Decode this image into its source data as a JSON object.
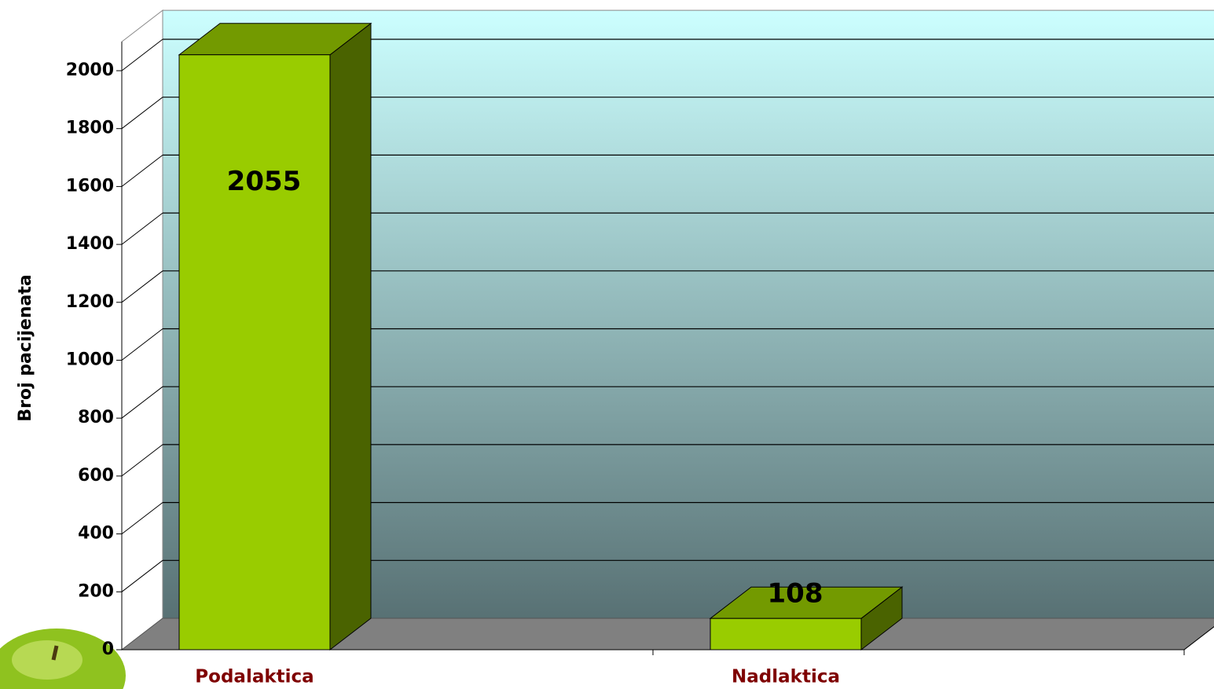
{
  "chart_data": {
    "type": "bar3d",
    "categories": [
      "Podalaktica",
      "Nadlaktica"
    ],
    "values": [
      2055,
      108
    ],
    "color": "#99cc00",
    "y_label": "Broj pacijenata",
    "ylim": [
      0,
      2100
    ],
    "yticks": [
      0,
      200,
      400,
      600,
      800,
      1000,
      1200,
      1400,
      1600,
      1800,
      2000
    ],
    "grid": true
  }
}
